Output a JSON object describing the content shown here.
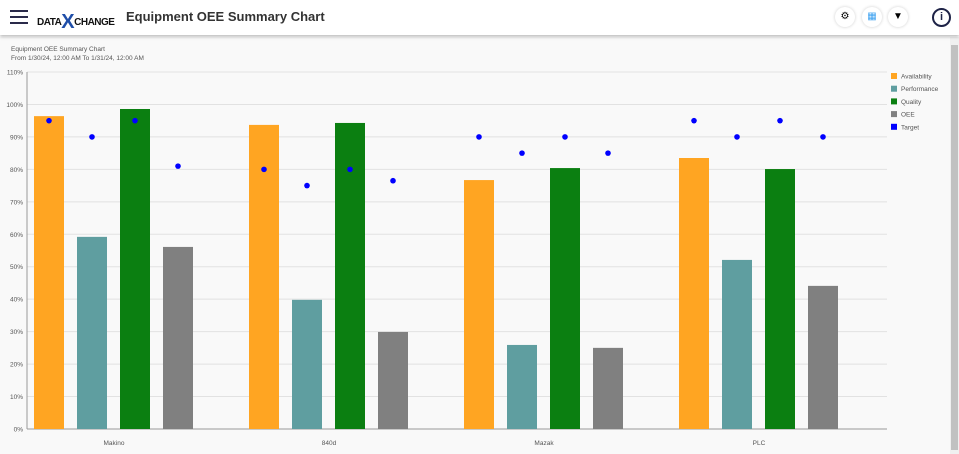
{
  "header": {
    "title": "Equipment OEE Summary Chart",
    "logo_text": "DATAXCHANGE",
    "icons": [
      "menu-icon",
      "gear-icon",
      "grid-icon",
      "filter-icon",
      "info-icon"
    ]
  },
  "chart_data": {
    "type": "bar",
    "title": "Equipment OEE Summary Chart",
    "subtitle": "From 1/30/24, 12:00 AM To 1/31/24, 12:00 AM",
    "categories": [
      "Makino",
      "840d",
      "Mazak",
      "PLC"
    ],
    "ylim": [
      0,
      110
    ],
    "yticks": [
      "0%",
      "10%",
      "20%",
      "30%",
      "40%",
      "50%",
      "60%",
      "70%",
      "80%",
      "90%",
      "100%",
      "110%"
    ],
    "grid": true,
    "legend_position": "right",
    "series": [
      {
        "name": "Availability",
        "color": "#ffa522",
        "values": [
          96.4,
          93.7,
          76.7,
          83.5
        ]
      },
      {
        "name": "Performance",
        "color": "#5f9ea0",
        "values": [
          59.2,
          39.8,
          25.9,
          52.1
        ]
      },
      {
        "name": "Quality",
        "color": "#0b7f11",
        "values": [
          98.6,
          94.3,
          80.4,
          80.1
        ]
      },
      {
        "name": "OEE",
        "color": "#808080",
        "values": [
          56.1,
          29.9,
          25.0,
          44.1
        ]
      }
    ],
    "target": {
      "name": "Target",
      "color": "#0000ff",
      "values": [
        [
          95,
          90,
          95,
          81
        ],
        [
          80,
          75,
          80,
          76.5
        ],
        [
          90,
          85,
          90,
          85
        ],
        [
          95,
          90,
          95,
          90
        ]
      ]
    }
  }
}
